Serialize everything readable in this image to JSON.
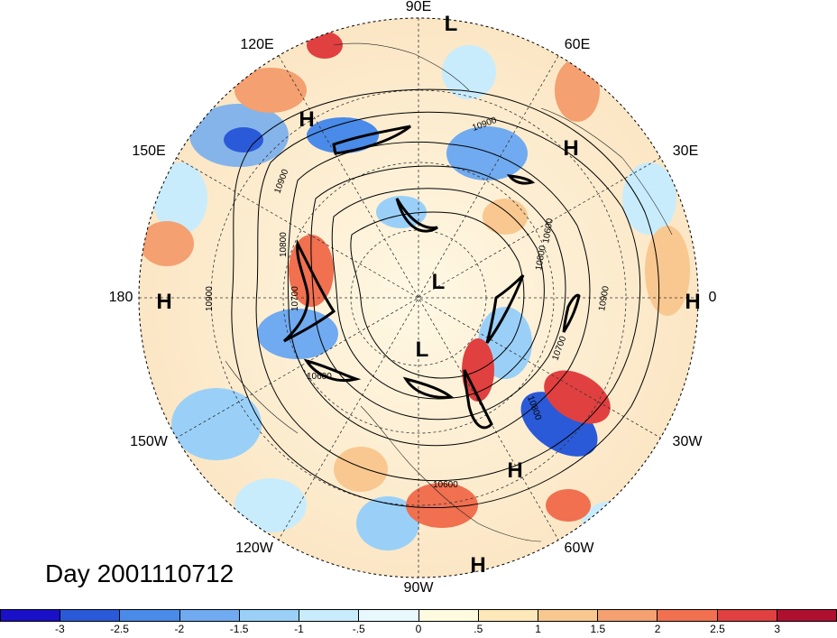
{
  "title": "Day 2001110712",
  "longitude_labels": {
    "e90": "90E",
    "e60": "60E",
    "e30": "30E",
    "zero": "0",
    "w30": "30W",
    "w60": "60W",
    "w90": "90W",
    "w120": "120W",
    "w150": "150W",
    "dateline": "180",
    "e150": "150E",
    "e120": "120E"
  },
  "pressure_centers": {
    "L1": "L",
    "L2": "L",
    "L3": "L",
    "H1": "H",
    "H2": "H",
    "H3": "H",
    "H4": "H",
    "H5": "H",
    "H6": "H"
  },
  "contour_labels": {
    "c1": "10900",
    "c2": "10900",
    "c3": "10800",
    "c4": "10700",
    "c5": "10900",
    "c6": "10600",
    "c7": "10900",
    "c8": "10700",
    "c9": "10800",
    "c10": "10600",
    "c11": "10800",
    "c12": "10600"
  },
  "colorbar": {
    "colors": [
      "#1a10c8",
      "#2a5ad8",
      "#4a8ae8",
      "#70aaf0",
      "#9ad0f8",
      "#c8ecfc",
      "#e8f8fc",
      "#fffbe0",
      "#fce8b8",
      "#f8c890",
      "#f4a070",
      "#f07050",
      "#e04040",
      "#b01030"
    ],
    "tick_labels": [
      "-3",
      "-2.5",
      "-2",
      "-1.5",
      "-1",
      "-.5",
      "0",
      ".5",
      "1",
      "1.5",
      "2",
      "2.5",
      "3"
    ]
  }
}
